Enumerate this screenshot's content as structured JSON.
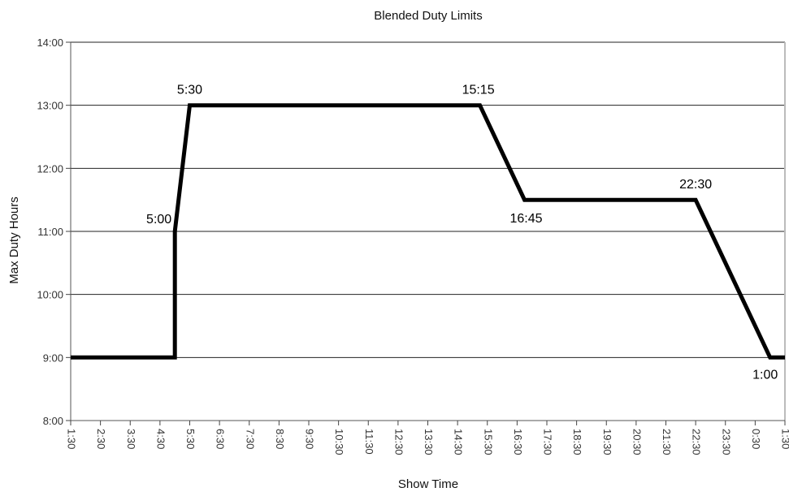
{
  "chart_data": {
    "type": "line",
    "title": "Blended Duty Limits",
    "xlabel": "Show Time",
    "ylabel": "Max Duty Hours",
    "x_tick_labels": [
      "1:30",
      "2:30",
      "3:30",
      "4:30",
      "5:30",
      "6:30",
      "7:30",
      "8:30",
      "9:30",
      "10:30",
      "11:30",
      "12:30",
      "13:30",
      "14:30",
      "15:30",
      "16:30",
      "17:30",
      "18:30",
      "19:30",
      "20:30",
      "21:30",
      "22:30",
      "23:30",
      "0:30",
      "1:30"
    ],
    "y_tick_labels": [
      "8:00",
      "9:00",
      "10:00",
      "11:00",
      "12:00",
      "13:00",
      "14:00"
    ],
    "xlim_hours_since_start": [
      0,
      24
    ],
    "ylim_hours": [
      8,
      14
    ],
    "grid": "horizontal",
    "series": [
      {
        "x": [
          "1:30",
          "5:00",
          "5:00",
          "5:30",
          "15:15",
          "16:45",
          "22:30",
          "1:00",
          "1:30"
        ],
        "y": [
          9,
          9,
          11,
          13,
          13,
          11.5,
          11.5,
          9,
          9
        ]
      }
    ],
    "annotations": [
      {
        "text": "5:30",
        "x": "5:30",
        "y": 13
      },
      {
        "text": "15:15",
        "x": "15:15",
        "y": 13
      },
      {
        "text": "5:00",
        "x": "5:00",
        "y": 11
      },
      {
        "text": "16:45",
        "x": "16:45",
        "y": 11.5
      },
      {
        "text": "22:30",
        "x": "22:30",
        "y": 11.5
      },
      {
        "text": "1:00",
        "x": "1:00",
        "y": 9
      }
    ]
  }
}
